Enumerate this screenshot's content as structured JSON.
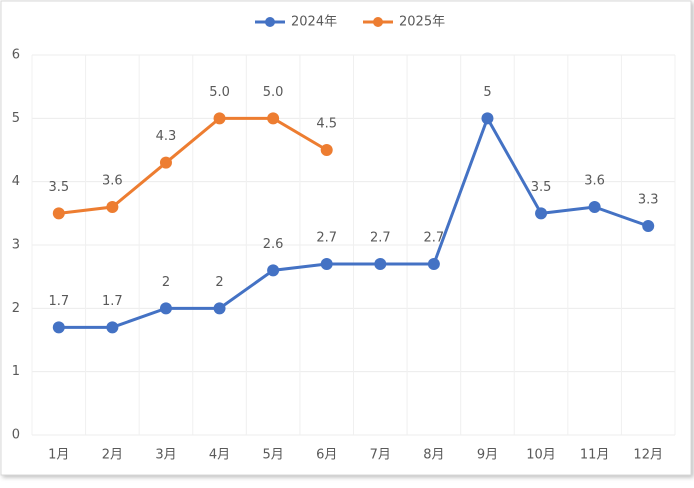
{
  "chart_data": {
    "type": "line",
    "categories": [
      "1月",
      "2月",
      "3月",
      "4月",
      "5月",
      "6月",
      "7月",
      "8月",
      "9月",
      "10月",
      "11月",
      "12月"
    ],
    "series": [
      {
        "name": "2024年",
        "color": "#4472c4",
        "values": [
          1.7,
          1.7,
          2,
          2,
          2.6,
          2.7,
          2.7,
          2.7,
          5,
          3.5,
          3.6,
          3.3
        ]
      },
      {
        "name": "2025年",
        "color": "#ed7d31",
        "values": [
          3.5,
          3.6,
          4.3,
          5.0,
          5.0,
          4.5,
          null,
          null,
          null,
          null,
          null,
          null
        ],
        "value_labels": [
          "3.5",
          "3.6",
          "4.3",
          "5.0",
          "5.0",
          "4.5",
          null,
          null,
          null,
          null,
          null,
          null
        ]
      }
    ],
    "ylim": [
      0,
      6
    ],
    "yticks": [
      0,
      1,
      2,
      3,
      4,
      5,
      6
    ],
    "grid": true,
    "legend": "top"
  }
}
